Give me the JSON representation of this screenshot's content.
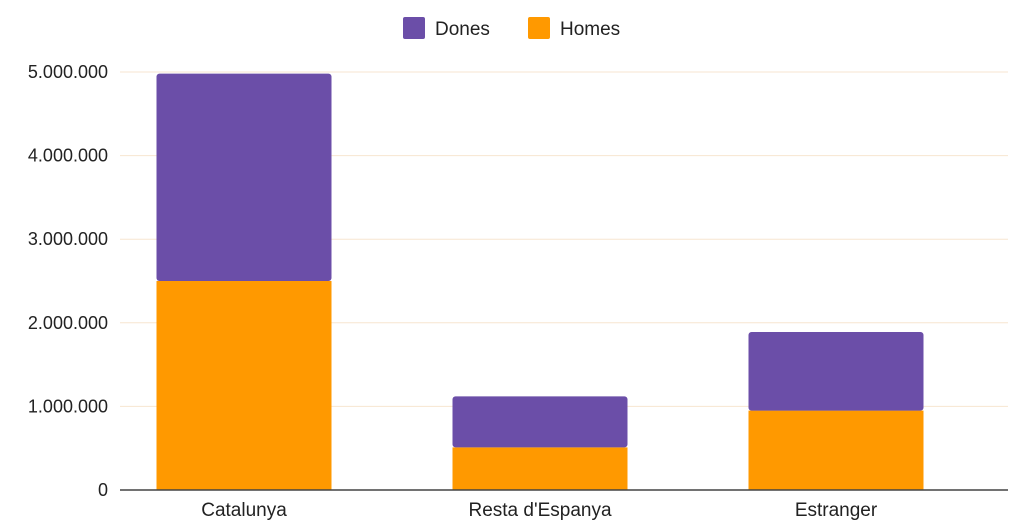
{
  "chart_data": {
    "type": "bar",
    "stacked": true,
    "categories": [
      "Catalunya",
      "Resta d'Espanya",
      "Estranger"
    ],
    "series": [
      {
        "name": "Homes",
        "color": "#ff9900",
        "values": [
          2500000,
          510000,
          950000
        ]
      },
      {
        "name": "Dones",
        "color": "#6b4ea8",
        "values": [
          2480000,
          610000,
          940000
        ]
      }
    ],
    "legend_order": [
      "Dones",
      "Homes"
    ],
    "legend_position": "top-center",
    "yticks": [
      0,
      1000000,
      2000000,
      3000000,
      4000000,
      5000000
    ],
    "ytick_labels": [
      "0",
      "1.000.000",
      "2.000.000",
      "3.000.000",
      "4.000.000",
      "5.000.000"
    ],
    "ylim": [
      0,
      5000000
    ],
    "grid": true,
    "gridline_color": "#f7e6d0",
    "axis_color": "#444444"
  }
}
